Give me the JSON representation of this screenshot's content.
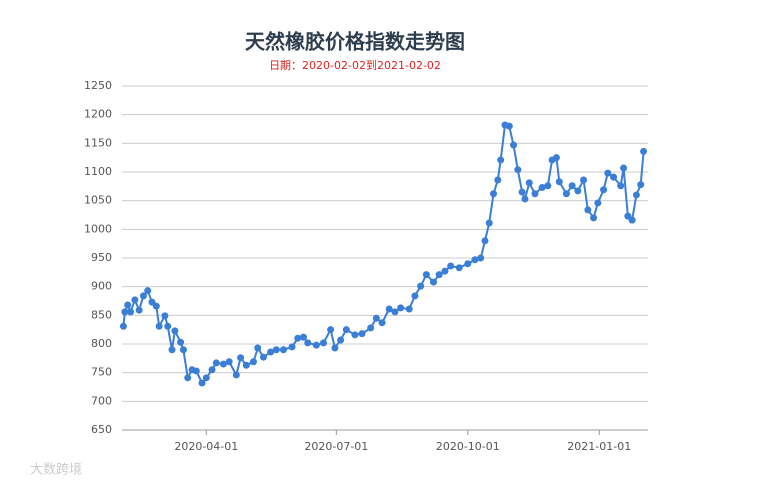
{
  "chart_data": {
    "type": "line",
    "title": "天然橡胶价格指数走势图",
    "subtitle": "日期：2020-02-02到2021-02-02",
    "watermark": "大数跨境",
    "color": "#3a7fd5",
    "grid": true,
    "xlim": [
      "2020-02-02",
      "2021-02-02"
    ],
    "xticks": [
      "2020-04-01",
      "2020-07-01",
      "2020-10-01",
      "2021-01-01"
    ],
    "ylim": [
      650,
      1250
    ],
    "yticks": [
      650,
      700,
      750,
      800,
      850,
      900,
      950,
      1000,
      1050,
      1100,
      1150,
      1200,
      1250
    ],
    "x": [
      "2020-02-03",
      "2020-02-04",
      "2020-02-06",
      "2020-02-08",
      "2020-02-11",
      "2020-02-14",
      "2020-02-17",
      "2020-02-20",
      "2020-02-23",
      "2020-02-26",
      "2020-02-28",
      "2020-03-03",
      "2020-03-05",
      "2020-03-08",
      "2020-03-10",
      "2020-03-14",
      "2020-03-16",
      "2020-03-19",
      "2020-03-22",
      "2020-03-25",
      "2020-03-29",
      "2020-04-01",
      "2020-04-05",
      "2020-04-08",
      "2020-04-13",
      "2020-04-17",
      "2020-04-22",
      "2020-04-25",
      "2020-04-29",
      "2020-05-04",
      "2020-05-07",
      "2020-05-11",
      "2020-05-16",
      "2020-05-20",
      "2020-05-25",
      "2020-05-31",
      "2020-06-04",
      "2020-06-08",
      "2020-06-11",
      "2020-06-17",
      "2020-06-22",
      "2020-06-27",
      "2020-06-30",
      "2020-07-04",
      "2020-07-08",
      "2020-07-14",
      "2020-07-19",
      "2020-07-25",
      "2020-07-29",
      "2020-08-02",
      "2020-08-07",
      "2020-08-11",
      "2020-08-15",
      "2020-08-21",
      "2020-08-25",
      "2020-08-29",
      "2020-09-02",
      "2020-09-07",
      "2020-09-11",
      "2020-09-15",
      "2020-09-19",
      "2020-09-25",
      "2020-10-01",
      "2020-10-06",
      "2020-10-10",
      "2020-10-13",
      "2020-10-16",
      "2020-10-19",
      "2020-10-22",
      "2020-10-24",
      "2020-10-27",
      "2020-10-30",
      "2020-11-02",
      "2020-11-05",
      "2020-11-08",
      "2020-11-10",
      "2020-11-13",
      "2020-11-17",
      "2020-11-22",
      "2020-11-26",
      "2020-11-29",
      "2020-12-02",
      "2020-12-04",
      "2020-12-09",
      "2020-12-13",
      "2020-12-17",
      "2020-12-21",
      "2020-12-24",
      "2020-12-28",
      "2020-12-31",
      "2021-01-04",
      "2021-01-07",
      "2021-01-11",
      "2021-01-16",
      "2021-01-18",
      "2021-01-21",
      "2021-01-24",
      "2021-01-27",
      "2021-01-30",
      "2021-02-01"
    ],
    "values": [
      831,
      856,
      868,
      856,
      877,
      859,
      884,
      893,
      873,
      866,
      831,
      849,
      831,
      790,
      823,
      803,
      790,
      741,
      755,
      753,
      732,
      741,
      755,
      767,
      765,
      769,
      746,
      776,
      763,
      769,
      793,
      777,
      786,
      790,
      790,
      795,
      810,
      812,
      802,
      798,
      802,
      825,
      793,
      807,
      825,
      816,
      818,
      828,
      845,
      837,
      861,
      856,
      863,
      861,
      884,
      901,
      921,
      908,
      921,
      927,
      936,
      933,
      940,
      947,
      950,
      980,
      1011,
      1062,
      1086,
      1121,
      1182,
      1180,
      1147,
      1104,
      1065,
      1053,
      1081,
      1062,
      1073,
      1076,
      1121,
      1125,
      1083,
      1062,
      1076,
      1067,
      1086,
      1034,
      1020,
      1046,
      1069,
      1098,
      1091,
      1076,
      1107,
      1023,
      1016,
      1060,
      1078,
      1136
    ]
  }
}
